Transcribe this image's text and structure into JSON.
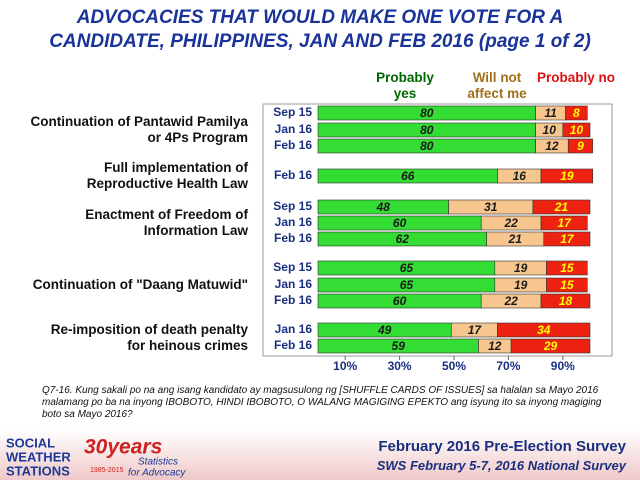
{
  "chart_data": {
    "type": "bar",
    "orientation": "horizontal",
    "stacked": true,
    "title": "ADVOCACIES THAT WOULD MAKE ONE VOTE FOR A CANDIDATE, PHILIPPINES, JAN AND FEB 2016 (page 1 of 2)",
    "series": [
      {
        "name": "Probably yes",
        "color": "#33dd33",
        "label_color": "#1a1a1a",
        "name_color": "#006600"
      },
      {
        "name": "Will not affect me",
        "color": "#f7c58e",
        "label_color": "#1a1a1a",
        "name_color": "#a0701a"
      },
      {
        "name": "Probably no",
        "color": "#ee2211",
        "label_color": "#ffff00",
        "name_color": "#dd1111"
      }
    ],
    "groups": [
      {
        "label": "Continuation of Pantawid Pamilya or 4Ps Program",
        "categories": [
          "Sep 15",
          "Jan 16",
          "Feb 16"
        ],
        "values": [
          [
            80,
            11,
            8
          ],
          [
            80,
            10,
            10
          ],
          [
            80,
            12,
            9
          ]
        ]
      },
      {
        "label": "Full implementation of Reproductive Health Law",
        "categories": [
          "Feb 16"
        ],
        "values": [
          [
            66,
            16,
            19
          ]
        ]
      },
      {
        "label": "Enactment of Freedom of Information Law",
        "categories": [
          "Sep 15",
          "Jan 16",
          "Feb 16"
        ],
        "values": [
          [
            48,
            31,
            21
          ],
          [
            60,
            22,
            17
          ],
          [
            62,
            21,
            17
          ]
        ]
      },
      {
        "label": "Continuation of \"Daang Matuwid\"",
        "categories": [
          "Sep 15",
          "Jan 16",
          "Feb 16"
        ],
        "values": [
          [
            65,
            19,
            15
          ],
          [
            65,
            19,
            15
          ],
          [
            60,
            22,
            18
          ]
        ]
      },
      {
        "label": "Re-imposition of death penalty for heinous crimes",
        "categories": [
          "Jan 16",
          "Feb 16"
        ],
        "values": [
          [
            49,
            17,
            34
          ],
          [
            59,
            12,
            29
          ]
        ]
      }
    ],
    "xlim": [
      0,
      100
    ],
    "xticks": [
      {
        "value": 10,
        "label": "10%"
      },
      {
        "value": 30,
        "label": "30%"
      },
      {
        "value": 50,
        "label": "50%"
      },
      {
        "value": 70,
        "label": "70%"
      },
      {
        "value": 90,
        "label": "90%"
      }
    ]
  },
  "footnote": "Q7-16. Kung sakali po na ang isang kandidato ay magsusulong ng [SHUFFLE CARDS OF ISSUES] sa halalan sa Mayo 2016 malamang po ba na inyong IBOBOTO, HINDI IBOBOTO, O WALANG MAGIGING EPEKTO ang isyung ito sa inyong magiging boto sa Mayo 2016?",
  "footer": {
    "survey": "February 2016 Pre-Election Survey",
    "subtitle": "SWS February 5-7, 2016 National Survey"
  },
  "logo": {
    "name_lines": [
      "SOCIAL",
      "WEATHER",
      "STATIONS"
    ],
    "years": "30years",
    "span": "1985-2015",
    "tagline_lines": [
      "Statistics",
      "for Advocacy"
    ]
  }
}
